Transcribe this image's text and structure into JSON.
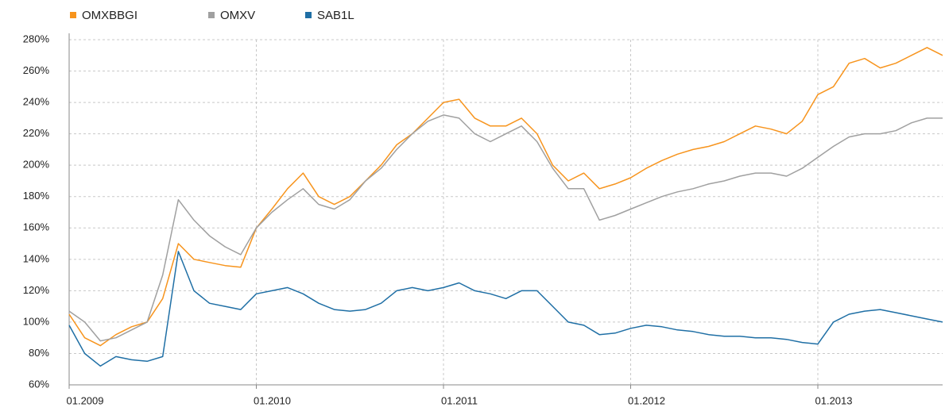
{
  "chart_data": {
    "type": "line",
    "x": [
      "01.2009",
      "02.2009",
      "03.2009",
      "04.2009",
      "05.2009",
      "06.2009",
      "07.2009",
      "08.2009",
      "09.2009",
      "10.2009",
      "11.2009",
      "12.2009",
      "01.2010",
      "02.2010",
      "03.2010",
      "04.2010",
      "05.2010",
      "06.2010",
      "07.2010",
      "08.2010",
      "09.2010",
      "10.2010",
      "11.2010",
      "12.2010",
      "01.2011",
      "02.2011",
      "03.2011",
      "04.2011",
      "05.2011",
      "06.2011",
      "07.2011",
      "08.2011",
      "09.2011",
      "10.2011",
      "11.2011",
      "12.2011",
      "01.2012",
      "02.2012",
      "03.2012",
      "04.2012",
      "05.2012",
      "06.2012",
      "07.2012",
      "08.2012",
      "09.2012",
      "10.2012",
      "11.2012",
      "12.2012",
      "01.2013",
      "02.2013",
      "03.2013",
      "04.2013",
      "05.2013",
      "06.2013",
      "07.2013",
      "08.2013",
      "09.2013"
    ],
    "series": [
      {
        "name": "OMXBBGI",
        "color": "#f7941d",
        "values": [
          105,
          90,
          85,
          92,
          97,
          100,
          115,
          150,
          140,
          138,
          136,
          135,
          160,
          172,
          185,
          195,
          180,
          175,
          180,
          190,
          200,
          213,
          220,
          230,
          240,
          242,
          230,
          225,
          225,
          230,
          220,
          200,
          190,
          195,
          185,
          188,
          192,
          198,
          203,
          207,
          210,
          212,
          215,
          220,
          225,
          223,
          220,
          228,
          245,
          250,
          265,
          268,
          262,
          265,
          270,
          275,
          270
        ]
      },
      {
        "name": "OMXV",
        "color": "#a0a0a0",
        "values": [
          107,
          100,
          88,
          90,
          95,
          100,
          130,
          178,
          165,
          155,
          148,
          143,
          160,
          170,
          178,
          185,
          175,
          172,
          178,
          190,
          198,
          210,
          220,
          228,
          232,
          230,
          220,
          215,
          220,
          225,
          215,
          198,
          185,
          185,
          165,
          168,
          172,
          176,
          180,
          183,
          185,
          188,
          190,
          193,
          195,
          195,
          193,
          198,
          205,
          212,
          218,
          220,
          220,
          222,
          227,
          230,
          230
        ]
      },
      {
        "name": "SAB1L",
        "color": "#1f6fa5",
        "values": [
          98,
          80,
          72,
          78,
          76,
          75,
          78,
          145,
          120,
          112,
          110,
          108,
          118,
          120,
          122,
          118,
          112,
          108,
          107,
          108,
          112,
          120,
          122,
          120,
          122,
          125,
          120,
          118,
          115,
          120,
          120,
          110,
          100,
          98,
          92,
          93,
          96,
          98,
          97,
          95,
          94,
          92,
          91,
          91,
          90,
          90,
          89,
          87,
          86,
          100,
          105,
          107,
          108,
          106,
          104,
          102,
          100
        ]
      }
    ],
    "xlim": [
      "01.2009",
      "09.2013"
    ],
    "xticks": [
      "01.2009",
      "01.2010",
      "01.2011",
      "01.2012",
      "01.2013"
    ],
    "ylim": [
      60,
      280
    ],
    "yticks": [
      {
        "value": 60,
        "label": "60%"
      },
      {
        "value": 80,
        "label": "80%"
      },
      {
        "value": 100,
        "label": "100%"
      },
      {
        "value": 120,
        "label": "120%"
      },
      {
        "value": 140,
        "label": "140%"
      },
      {
        "value": 160,
        "label": "160%"
      },
      {
        "value": 180,
        "label": "180%"
      },
      {
        "value": 200,
        "label": "200%"
      },
      {
        "value": 220,
        "label": "220%"
      },
      {
        "value": 240,
        "label": "240%"
      },
      {
        "value": 260,
        "label": "260%"
      },
      {
        "value": 280,
        "label": "280%"
      }
    ],
    "grid": true
  }
}
